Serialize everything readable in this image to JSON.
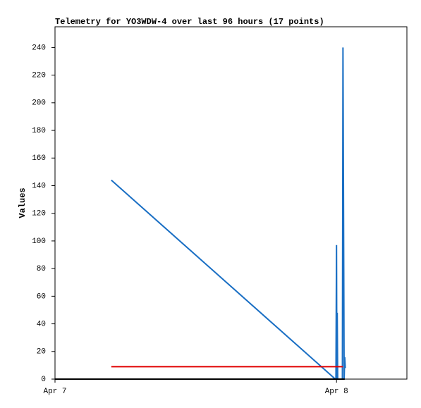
{
  "chart_data": {
    "type": "line",
    "title": "Telemetry for YO3WDW-4 over last 96 hours (17 points)",
    "y_label": "Values",
    "xlim": [
      0,
      30
    ],
    "xticks": [
      {
        "value": 0,
        "label": "Apr 7"
      },
      {
        "value": 24,
        "label": "Apr 8"
      }
    ],
    "ylim": [
      0,
      255
    ],
    "yticks": [
      0,
      20,
      40,
      60,
      80,
      100,
      120,
      140,
      160,
      180,
      200,
      220,
      240
    ],
    "grid": false,
    "series": [
      {
        "color": "#1a6fc4",
        "x": [
          4.8,
          23.9,
          23.95,
          24.0,
          24.03,
          24.06,
          24.1,
          24.5,
          24.55,
          24.65,
          24.7,
          24.75
        ],
        "values": [
          144,
          0,
          0,
          97,
          0,
          48,
          0,
          0,
          240,
          0,
          16,
          8
        ]
      },
      {
        "color": "#e00000",
        "x": [
          4.8,
          24.55
        ],
        "values": [
          9,
          9
        ]
      },
      {
        "color": "#000000",
        "x": [
          0,
          24.7
        ],
        "values": [
          0,
          0
        ]
      }
    ]
  }
}
